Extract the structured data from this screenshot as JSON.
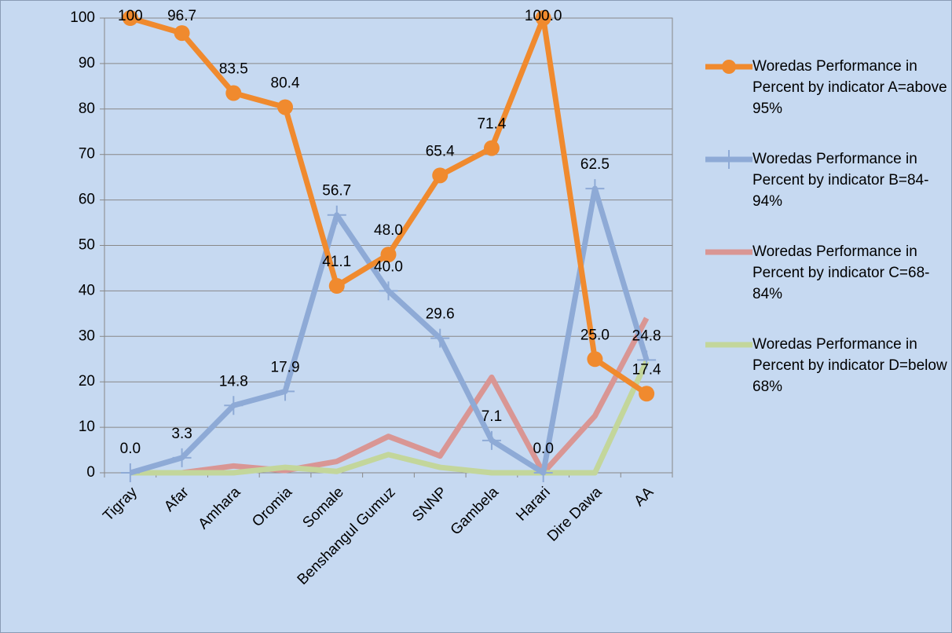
{
  "chart_data": {
    "type": "line",
    "categories": [
      "Tigray",
      "Afar",
      "Amhara",
      "Oromia",
      "Somale",
      "Benshangul Gumuz",
      "SNNP",
      "Gambela",
      "Harari",
      "Dire Dawa",
      "AA"
    ],
    "series": [
      {
        "name": "Woredas Performance in Percent by indicator A=above 95%",
        "color": "#f08a2e",
        "marker": "circle",
        "values": [
          100,
          96.7,
          83.5,
          80.4,
          41.1,
          48.0,
          65.4,
          71.4,
          100.0,
          25.0,
          17.4
        ],
        "value_labels": [
          "100",
          "96.7",
          "83.5",
          "80.4",
          "41.1",
          "48.0",
          "65.4",
          "71.4",
          "100.0",
          "25.0",
          "17.4"
        ]
      },
      {
        "name": "Woredas Performance in Percent by indicator B=84-94%",
        "color": "#8eaad6",
        "marker": "plus",
        "values": [
          0.0,
          3.3,
          14.8,
          17.9,
          56.7,
          40.0,
          29.6,
          7.1,
          0.0,
          62.5,
          24.8
        ],
        "value_labels": [
          "0.0",
          "3.3",
          "14.8",
          "17.9",
          "56.7",
          "40.0",
          "29.6",
          "7.1",
          "0.0",
          "62.5",
          "24.8"
        ]
      },
      {
        "name": "Woredas Performance in Percent by indicator C=68-84%",
        "color": "#d99694",
        "marker": "none",
        "values": [
          0,
          0,
          1.5,
          0.5,
          2.5,
          8,
          3.7,
          21,
          0,
          12.5,
          34
        ]
      },
      {
        "name": "Woredas Performance in Percent by indicator D=below 68%",
        "color": "#c3d69b",
        "marker": "none",
        "values": [
          0,
          0,
          0,
          1.2,
          0.3,
          4,
          1.2,
          0,
          0,
          0,
          24.5
        ]
      }
    ],
    "ylim": [
      0,
      100
    ],
    "yticks": [
      0,
      10,
      20,
      30,
      40,
      50,
      60,
      70,
      80,
      90,
      100
    ],
    "grid": true,
    "legend": "right"
  }
}
